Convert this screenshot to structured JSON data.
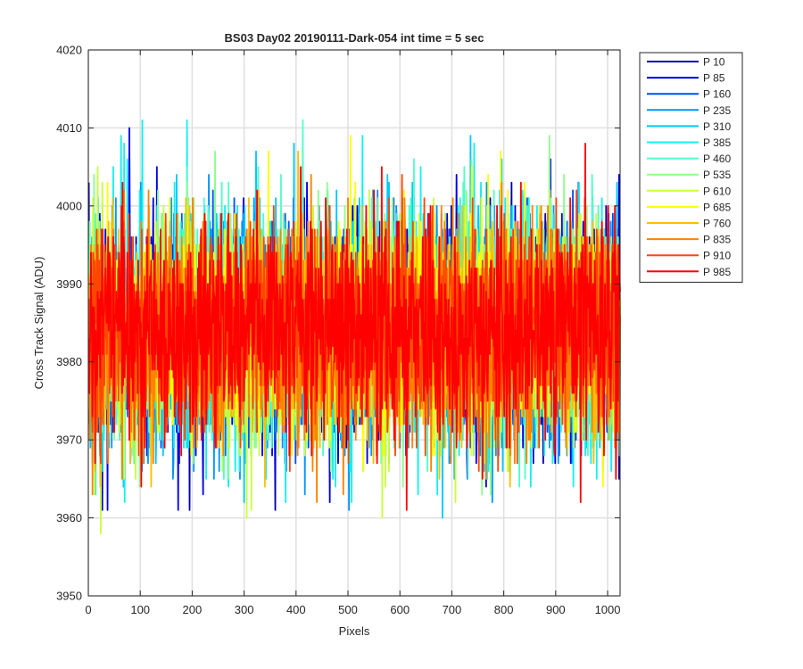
{
  "chart_data": {
    "type": "line",
    "title": "BS03 Day02 20190111-Dark-054 int time = 5 sec",
    "xlabel": "Pixels",
    "ylabel": "Cross Track Signal (ADU)",
    "xlim": [
      0,
      1024
    ],
    "ylim": [
      3950,
      4020
    ],
    "xticks": [
      0,
      100,
      200,
      300,
      400,
      500,
      600,
      700,
      800,
      900,
      1000
    ],
    "yticks": [
      3950,
      3960,
      3970,
      3980,
      3990,
      4000,
      4010,
      4020
    ],
    "grid": true,
    "legend_position": "outside-top-right",
    "n_points_per_series": 1024,
    "series": [
      {
        "name": "P 10",
        "color": "#0000b0",
        "mean": 3984,
        "min": 3961,
        "max": 4012
      },
      {
        "name": "P 85",
        "color": "#0000e6",
        "mean": 3984,
        "min": 3961,
        "max": 4017
      },
      {
        "name": "P 160",
        "color": "#0050ff",
        "mean": 3984,
        "min": 3960,
        "max": 4012
      },
      {
        "name": "P 235",
        "color": "#0096ff",
        "mean": 3984,
        "min": 3957,
        "max": 4012
      },
      {
        "name": "P 310",
        "color": "#00c8ff",
        "mean": 3984,
        "min": 3957,
        "max": 4011
      },
      {
        "name": "P 385",
        "color": "#14f0f0",
        "mean": 3984,
        "min": 3951,
        "max": 4011
      },
      {
        "name": "P 460",
        "color": "#50ffc8",
        "mean": 3984,
        "min": 3960,
        "max": 4013
      },
      {
        "name": "P 535",
        "color": "#8cff8c",
        "mean": 3984,
        "min": 3958,
        "max": 4013
      },
      {
        "name": "P 610",
        "color": "#c8ff3c",
        "mean": 3984,
        "min": 3958,
        "max": 4010
      },
      {
        "name": "P 685",
        "color": "#ffff00",
        "mean": 3984,
        "min": 3956,
        "max": 4009
      },
      {
        "name": "P 760",
        "color": "#ffbe00",
        "mean": 3984,
        "min": 3960,
        "max": 4010
      },
      {
        "name": "P 835",
        "color": "#ff8200",
        "mean": 3984,
        "min": 3958,
        "max": 4011
      },
      {
        "name": "P 910",
        "color": "#ff4600",
        "mean": 3984,
        "min": 3960,
        "max": 4010
      },
      {
        "name": "P 985",
        "color": "#ff0000",
        "mean": 3984,
        "min": 3957,
        "max": 4009
      }
    ]
  }
}
